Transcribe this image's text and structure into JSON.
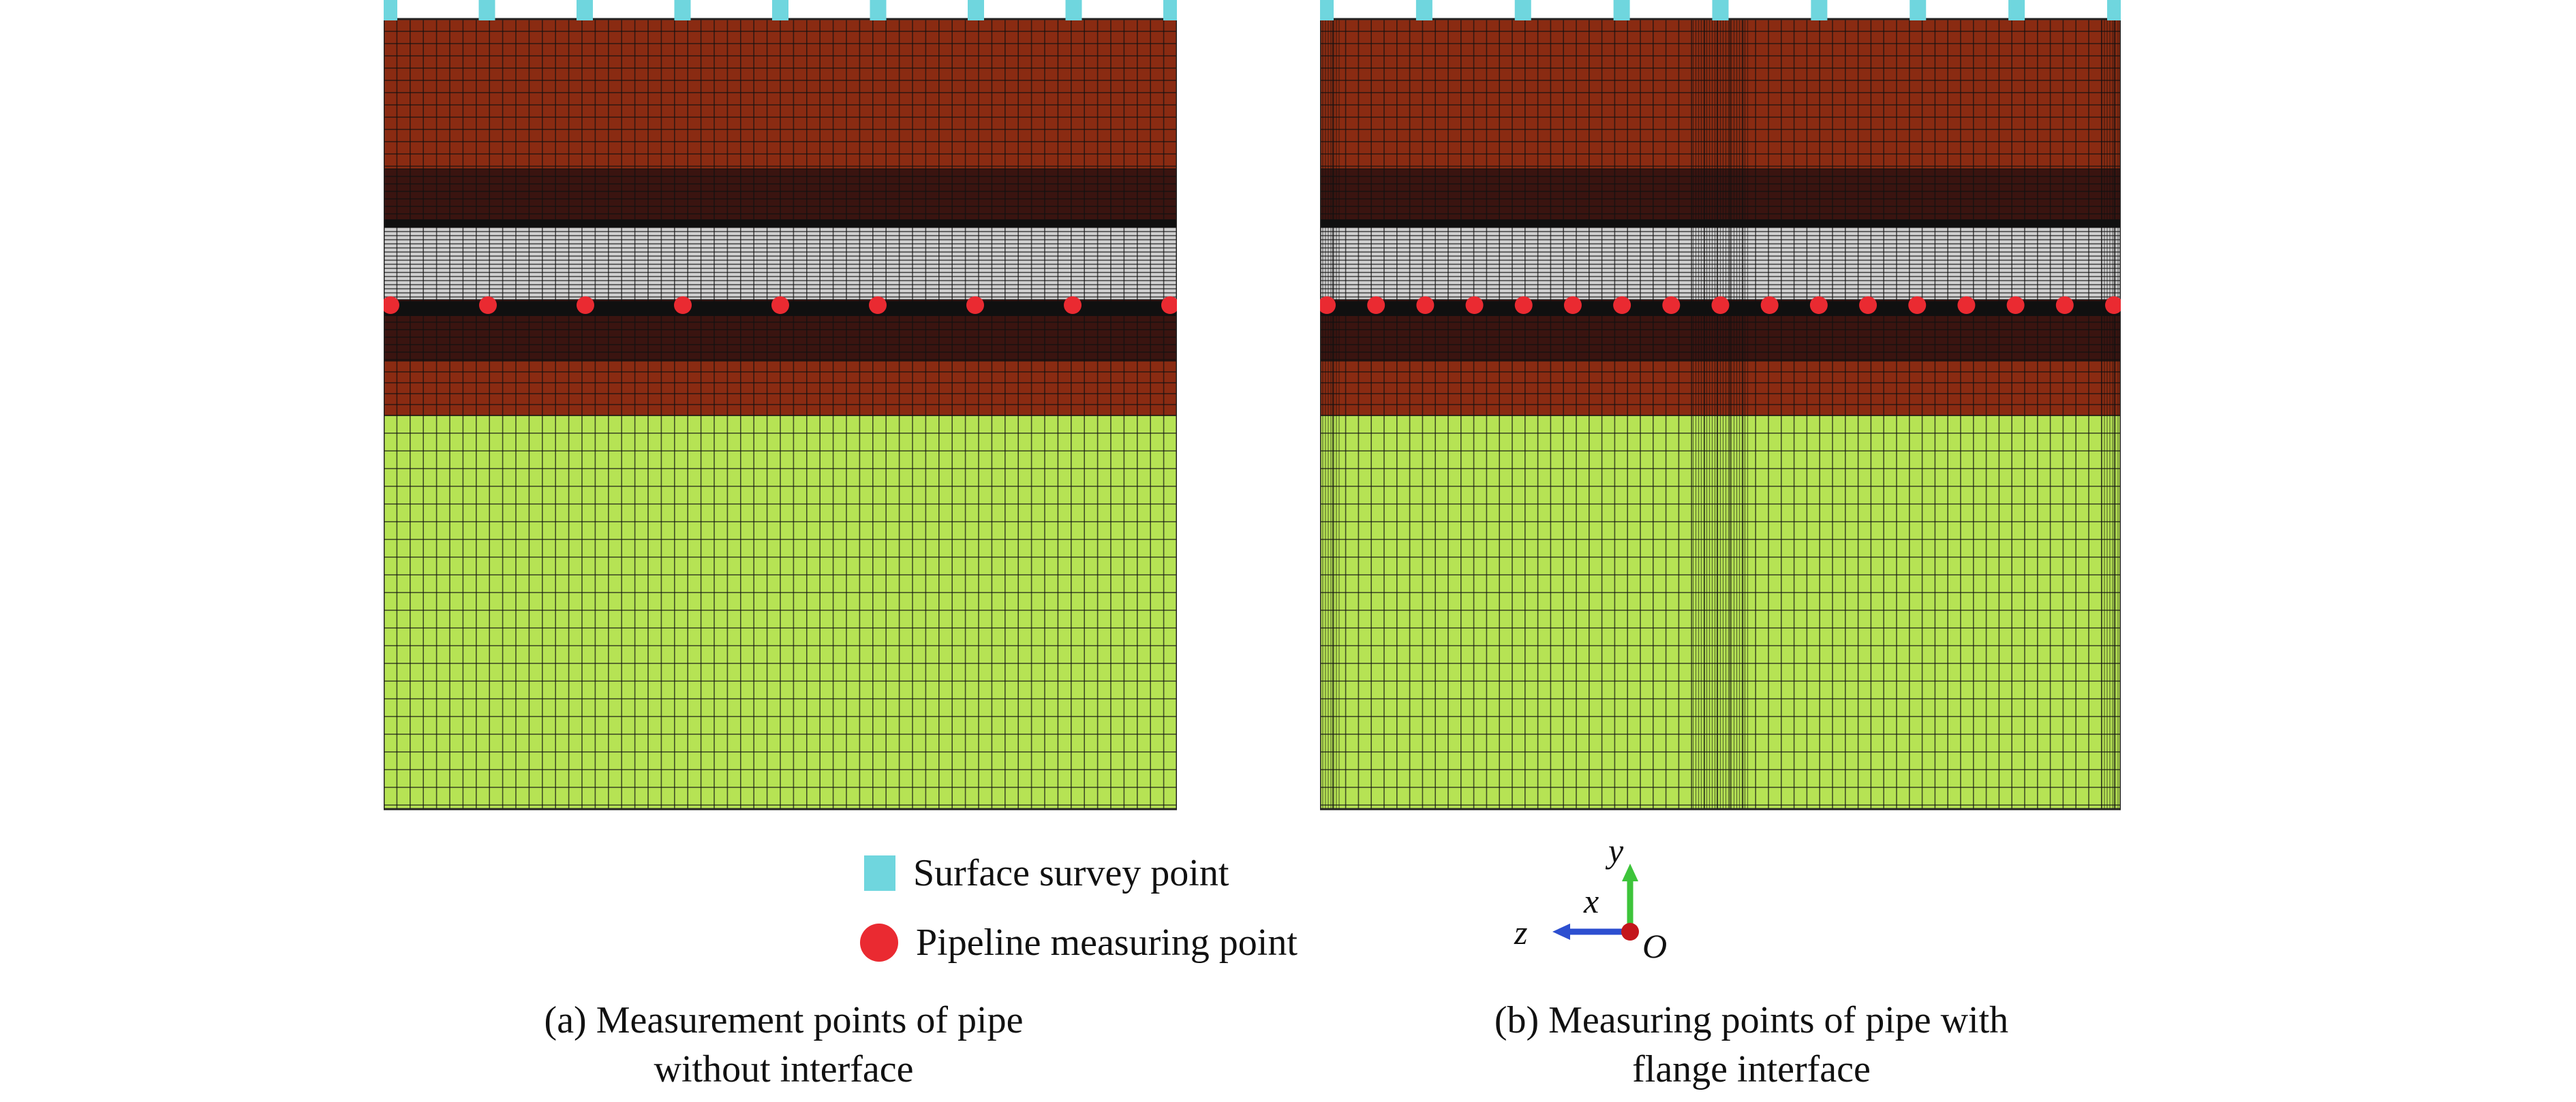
{
  "colors": {
    "surface_point": "#6fd6de",
    "pipeline_point": "#ea2a31",
    "upper_soil": "#8a2b12",
    "dark_band": "#3a1410",
    "pipe_band": "#cfcfcf",
    "lower_soil": "#b6e354",
    "mesh_line": "#111111",
    "y_axis": "#3dc43a",
    "z_axis": "#2d4fd0",
    "origin": "#c4161c"
  },
  "legend": {
    "surface_label": "Surface survey point",
    "pipeline_label": "Pipeline measuring point"
  },
  "axes": {
    "y": "y",
    "x": "x",
    "z": "z",
    "origin": "O"
  },
  "captions": {
    "a_line1": "(a) Measurement points of pipe",
    "a_line2": "without interface",
    "b_line1": "(b) Measuring points of pipe with",
    "b_line2": "flange interface"
  },
  "panel_a": {
    "surface_points": 9,
    "pipeline_points": 9,
    "has_interface": false
  },
  "panel_b": {
    "surface_points": 9,
    "pipeline_points": 17,
    "has_interface": true
  }
}
